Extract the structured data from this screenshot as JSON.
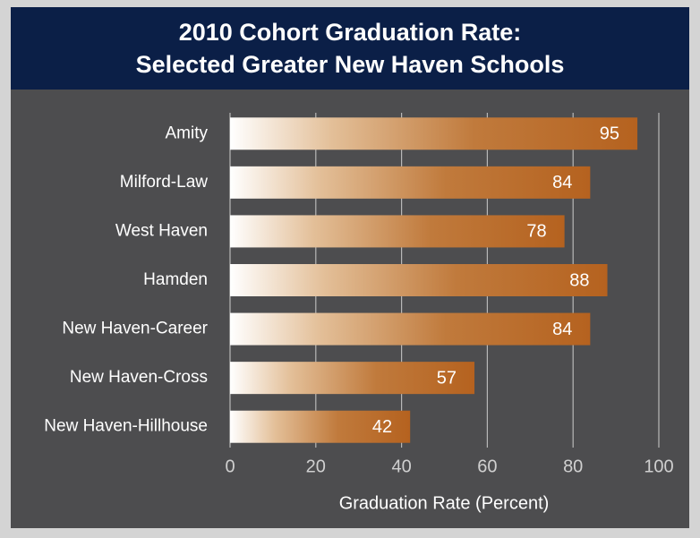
{
  "chart_data": {
    "type": "bar",
    "orientation": "horizontal",
    "title": [
      "2010 Cohort Graduation Rate:",
      "Selected Greater New Haven Schools"
    ],
    "categories": [
      "Amity",
      "Milford-Law",
      "West Haven",
      "Hamden",
      "New Haven-Career",
      "New Haven-Cross",
      "New Haven-Hillhouse"
    ],
    "values": [
      95,
      84,
      78,
      88,
      84,
      57,
      42
    ],
    "color": "#b5621f",
    "xlabel": "Graduation Rate (Percent)",
    "xlim": [
      0,
      100
    ],
    "xticks": [
      0,
      20,
      40,
      60,
      80,
      100
    ],
    "grid": true
  }
}
